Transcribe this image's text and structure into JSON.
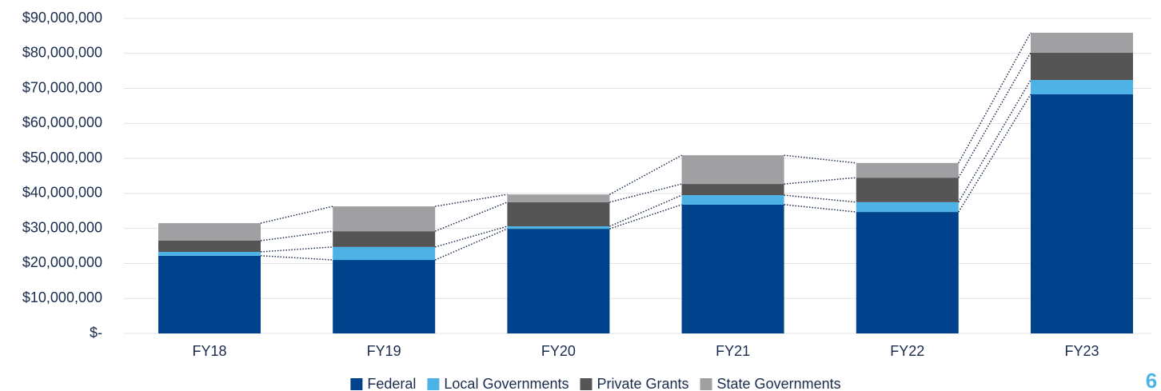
{
  "chart_data": {
    "type": "stacked_bar",
    "categories": [
      "FY18",
      "FY19",
      "FY20",
      "FY21",
      "FY22",
      "FY23"
    ],
    "series": [
      {
        "name": "Federal",
        "color": "#00438c",
        "values": [
          22200000,
          21000000,
          29900000,
          36800000,
          34700000,
          68300000
        ]
      },
      {
        "name": "Local Governments",
        "color": "#4db3e6",
        "values": [
          1100000,
          3700000,
          700000,
          2700000,
          2800000,
          4100000
        ]
      },
      {
        "name": "Private Grants",
        "color": "#555556",
        "values": [
          3200000,
          4500000,
          6900000,
          3200000,
          7000000,
          7800000
        ]
      },
      {
        "name": "State Governments",
        "color": "#a0a0a3",
        "values": [
          5000000,
          7100000,
          2200000,
          8200000,
          4200000,
          5700000
        ]
      }
    ],
    "ylim": [
      0,
      90000000
    ],
    "yticks": [
      {
        "value": 0,
        "label": "$-"
      },
      {
        "value": 10000000,
        "label": "$10,000,000"
      },
      {
        "value": 20000000,
        "label": "$20,000,000"
      },
      {
        "value": 30000000,
        "label": "$30,000,000"
      },
      {
        "value": 40000000,
        "label": "$40,000,000"
      },
      {
        "value": 50000000,
        "label": "$50,000,000"
      },
      {
        "value": 60000000,
        "label": "$60,000,000"
      },
      {
        "value": 70000000,
        "label": "$70,000,000"
      },
      {
        "value": 80000000,
        "label": "$80,000,000"
      },
      {
        "value": 90000000,
        "label": "$90,000,000"
      }
    ],
    "grid": true,
    "legend": "bottom"
  },
  "page_number": "6"
}
